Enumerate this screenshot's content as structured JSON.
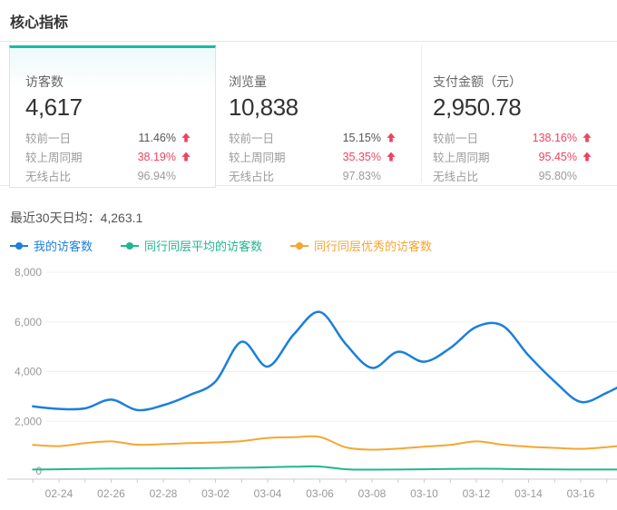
{
  "header": {
    "title": "核心指标"
  },
  "cards": [
    {
      "label": "访客数",
      "value": "4,617",
      "selected": true,
      "rows": [
        {
          "label": "较前一日",
          "value": "11.46%",
          "trend": "up",
          "style": "dark"
        },
        {
          "label": "较上周同期",
          "value": "38.19%",
          "trend": "up",
          "style": "red"
        },
        {
          "label": "无线占比",
          "value": "96.94%",
          "trend": "none",
          "style": "gray"
        }
      ]
    },
    {
      "label": "浏览量",
      "value": "10,838",
      "selected": false,
      "rows": [
        {
          "label": "较前一日",
          "value": "15.15%",
          "trend": "up",
          "style": "dark"
        },
        {
          "label": "较上周同期",
          "value": "35.35%",
          "trend": "up",
          "style": "red"
        },
        {
          "label": "无线占比",
          "value": "97.83%",
          "trend": "none",
          "style": "gray"
        }
      ]
    },
    {
      "label": "支付金额（元）",
      "value": "2,950.78",
      "selected": false,
      "rows": [
        {
          "label": "较前一日",
          "value": "138.16%",
          "trend": "up",
          "style": "red"
        },
        {
          "label": "较上周同期",
          "value": "95.45%",
          "trend": "up",
          "style": "red"
        },
        {
          "label": "无线占比",
          "value": "95.80%",
          "trend": "none",
          "style": "gray"
        }
      ]
    }
  ],
  "chart": {
    "avg_label": "最近30天日均：",
    "avg_value": "4,263.1"
  },
  "chart_data": {
    "type": "line",
    "x": [
      "02-23",
      "02-24",
      "02-25",
      "02-26",
      "02-27",
      "02-28",
      "03-01",
      "03-02",
      "03-03",
      "03-04",
      "03-05",
      "03-06",
      "03-07",
      "03-08",
      "03-09",
      "03-10",
      "03-11",
      "03-12",
      "03-13",
      "03-14",
      "03-15",
      "03-16",
      "03-17",
      "03-18"
    ],
    "series": [
      {
        "name": "我的访客数",
        "color": "#1c7fdb",
        "values": [
          2600,
          2500,
          2520,
          2870,
          2450,
          2650,
          3050,
          3600,
          5200,
          4200,
          5500,
          6400,
          5100,
          4150,
          4800,
          4400,
          4950,
          5800,
          5850,
          4650,
          3600,
          2780,
          3150,
          3700
        ]
      },
      {
        "name": "同行同层平均的访客数",
        "color": "#22b690",
        "values": [
          60,
          70,
          85,
          95,
          100,
          105,
          110,
          120,
          130,
          150,
          170,
          180,
          70,
          55,
          60,
          70,
          80,
          90,
          85,
          70,
          65,
          60,
          60,
          65
        ]
      },
      {
        "name": "同行同层优秀的访客数",
        "color": "#f6a632",
        "values": [
          1050,
          1000,
          1120,
          1190,
          1060,
          1080,
          1120,
          1150,
          1200,
          1330,
          1360,
          1370,
          950,
          860,
          900,
          980,
          1050,
          1190,
          1060,
          980,
          930,
          890,
          960,
          1060
        ]
      }
    ],
    "ylim": [
      0,
      8000
    ],
    "y_ticks": [
      0,
      2000,
      4000,
      6000,
      8000
    ],
    "y_tick_labels": [
      "0",
      "2,000",
      "4,000",
      "6,000",
      "8,000"
    ],
    "x_label_interval": 2,
    "grid": true,
    "smooth": true,
    "legend_position": "top-left"
  },
  "colors": {
    "accent_teal": "#15bca4",
    "trend_red": "#ee4360",
    "axis_text": "#999999"
  }
}
